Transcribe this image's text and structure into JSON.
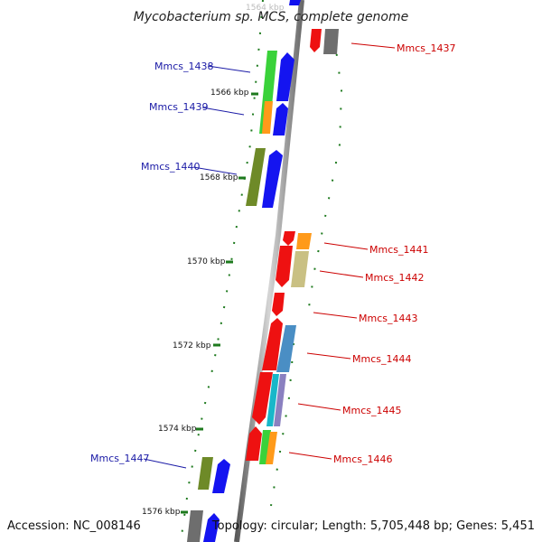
{
  "header": {
    "title": "Mycobacterium sp. MCS, complete genome"
  },
  "footer": {
    "accession": "Accession: NC_008146",
    "topology": "Topology: circular; Length: 5,705,448 bp; Genes: 5,451"
  },
  "scale": {
    "ticks": [
      "1564 kbp",
      "1566 kbp",
      "1568 kbp",
      "1570 kbp",
      "1572 kbp",
      "1574 kbp",
      "1576 kbp"
    ]
  },
  "genes": {
    "left": [
      "Mmcs_1438",
      "Mmcs_1439",
      "Mmcs_1440",
      "Mmcs_1447"
    ],
    "right": [
      "Mmcs_1437",
      "Mmcs_1441",
      "Mmcs_1442",
      "Mmcs_1443",
      "Mmcs_1444",
      "Mmcs_1445",
      "Mmcs_1446"
    ]
  },
  "colors": {
    "left_label": "#1a1aa6",
    "right_label": "#cc0000",
    "backbone": "#8c8c8c",
    "tick": "#1e7a1e"
  }
}
